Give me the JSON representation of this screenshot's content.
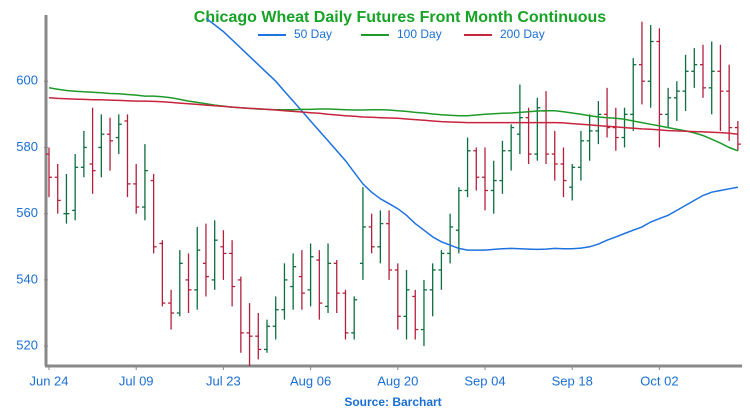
{
  "chart_data": {
    "type": "ohlc",
    "title": "Chicago Wheat Daily Futures Front Month Continuous",
    "source": "Source: Barchart",
    "categories": [
      "Jun 24",
      null,
      null,
      null,
      null,
      null,
      null,
      null,
      null,
      null,
      "Jul 09",
      null,
      null,
      null,
      null,
      null,
      null,
      null,
      null,
      null,
      "Jul 23",
      null,
      null,
      null,
      null,
      null,
      null,
      null,
      null,
      null,
      "Aug 06",
      null,
      null,
      null,
      null,
      null,
      null,
      null,
      null,
      null,
      "Aug 20",
      null,
      null,
      null,
      null,
      null,
      null,
      null,
      null,
      null,
      "Sep 04",
      null,
      null,
      null,
      null,
      null,
      null,
      null,
      null,
      null,
      "Sep 18",
      null,
      null,
      null,
      null,
      null,
      null,
      null,
      null,
      null,
      "Oct 02",
      null,
      null,
      null,
      null,
      null,
      null,
      null,
      null,
      null
    ],
    "open": [
      578,
      571,
      560,
      561,
      574,
      575,
      580,
      584,
      583,
      588,
      569,
      562,
      570,
      551,
      533,
      530,
      540,
      537,
      545,
      540,
      550,
      548,
      540,
      524,
      523,
      519,
      526,
      531,
      538,
      541,
      537,
      546,
      532,
      545,
      536,
      524,
      545,
      556,
      550,
      557,
      543,
      529,
      535,
      525,
      537,
      543,
      548,
      555,
      567,
      579,
      571,
      567,
      570,
      579,
      584,
      589,
      578,
      591,
      578,
      575,
      568,
      574,
      582,
      585,
      590,
      586,
      583,
      590,
      605,
      600,
      612,
      590,
      595,
      597,
      603,
      605,
      598,
      603,
      597,
      586
    ],
    "high": [
      580,
      575,
      572,
      578,
      585,
      592,
      590,
      589,
      590,
      590,
      575,
      581,
      572,
      552,
      537,
      549,
      548,
      556,
      557,
      558,
      555,
      552,
      541,
      533,
      530,
      528,
      535,
      545,
      548,
      549,
      551,
      549,
      551,
      546,
      537,
      535,
      568,
      560,
      561,
      561,
      545,
      543,
      537,
      540,
      545,
      549,
      560,
      568,
      583,
      580,
      580,
      576,
      582,
      587,
      599,
      592,
      595,
      597,
      585,
      580,
      575,
      585,
      590,
      594,
      598,
      592,
      592,
      607,
      618,
      617,
      616,
      598,
      600,
      608,
      610,
      611,
      612,
      611,
      605,
      588
    ],
    "low": [
      565,
      560,
      557,
      558,
      571,
      566,
      571,
      573,
      578,
      565,
      560,
      558,
      548,
      532,
      525,
      529,
      530,
      531,
      535,
      537,
      540,
      532,
      518,
      514,
      516,
      518,
      522,
      528,
      531,
      531,
      532,
      528,
      530,
      530,
      522,
      522,
      540,
      548,
      545,
      540,
      525,
      522,
      522,
      520,
      529,
      537,
      545,
      548,
      565,
      567,
      561,
      560,
      566,
      573,
      578,
      575,
      576,
      575,
      570,
      565,
      564,
      570,
      576,
      581,
      583,
      579,
      580,
      585,
      593,
      592,
      580,
      586,
      588,
      591,
      598,
      595,
      590,
      585,
      582,
      579
    ],
    "close": [
      571,
      564,
      560,
      574,
      580,
      573,
      584,
      582,
      587,
      569,
      562,
      573,
      550,
      533,
      530,
      545,
      537,
      549,
      541,
      552,
      548,
      538,
      524,
      523,
      519,
      526,
      531,
      540,
      544,
      536,
      547,
      533,
      545,
      536,
      524,
      534,
      556,
      550,
      557,
      543,
      529,
      537,
      525,
      537,
      543,
      548,
      556,
      567,
      579,
      571,
      567,
      570,
      579,
      586,
      589,
      578,
      592,
      578,
      575,
      570,
      574,
      582,
      585,
      590,
      586,
      583,
      590,
      605,
      600,
      612,
      590,
      595,
      597,
      603,
      605,
      598,
      603,
      597,
      586,
      581
    ],
    "up_color": "#0b6e3e",
    "down_color": "#b3203c",
    "series": [
      {
        "name": "50 Day",
        "color": "#1e72e0",
        "values": [
          null,
          null,
          null,
          null,
          null,
          null,
          null,
          null,
          null,
          null,
          null,
          null,
          null,
          null,
          null,
          null,
          null,
          null,
          619,
          617,
          615,
          612.5,
          610,
          607.5,
          605,
          602.5,
          600,
          597,
          594,
          591,
          588,
          585,
          582,
          579,
          576,
          572.5,
          569,
          566.5,
          564.5,
          563,
          561.5,
          559.5,
          557,
          555,
          553,
          551.5,
          550.5,
          549.5,
          549,
          549,
          549,
          549.2,
          549.4,
          549.5,
          549.4,
          549.3,
          549.2,
          549.3,
          549.5,
          549.4,
          549.4,
          549.6,
          550,
          550.8,
          552,
          553,
          554,
          555,
          556,
          557.5,
          558.5,
          559.5,
          561,
          562.5,
          564,
          565.5,
          566.5,
          567,
          567.5,
          568
        ]
      },
      {
        "name": "100 Day",
        "color": "#1e9a2a",
        "values": [
          598,
          597.6,
          597.2,
          597,
          596.8,
          596.7,
          596.5,
          596.3,
          596.2,
          596,
          595.8,
          595.5,
          595.5,
          595.3,
          595,
          594.5,
          594,
          593.6,
          593.2,
          592.8,
          592.5,
          592.2,
          592,
          591.8,
          591.6,
          591.5,
          591.4,
          591.4,
          591.4,
          591.5,
          591.5,
          591.6,
          591.6,
          591.5,
          591.4,
          591.3,
          591.3,
          591.4,
          591.4,
          591.3,
          591.1,
          590.9,
          590.6,
          590.4,
          590.1,
          589.9,
          589.7,
          589.6,
          589.6,
          589.8,
          590,
          590.2,
          590.3,
          590.4,
          590.6,
          590.8,
          591,
          591.1,
          591.1,
          590.8,
          590.4,
          590,
          589.6,
          589.2,
          589,
          588.8,
          588.5,
          588,
          587.5,
          587,
          586.5,
          586,
          585.5,
          585,
          584.4,
          583.6,
          582.5,
          581.3,
          580,
          579
        ]
      },
      {
        "name": "200 Day",
        "color": "#c8243e",
        "values": [
          595,
          594.8,
          594.7,
          594.6,
          594.5,
          594.4,
          594.4,
          594.3,
          594.2,
          594.1,
          594,
          594,
          593.9,
          593.8,
          593.6,
          593.4,
          593.2,
          593,
          592.8,
          592.6,
          592.4,
          592.2,
          592,
          591.8,
          591.7,
          591.5,
          591.3,
          591.1,
          590.9,
          590.7,
          590.5,
          590.3,
          590,
          589.8,
          589.6,
          589.4,
          589.2,
          589.1,
          589,
          588.9,
          588.8,
          588.6,
          588.4,
          588.2,
          588,
          587.8,
          587.7,
          587.6,
          587.5,
          587.5,
          587.5,
          587.5,
          587.5,
          587.5,
          587.5,
          587.5,
          587.5,
          587.5,
          587.5,
          587.4,
          587.2,
          587,
          586.8,
          586.6,
          586.4,
          586.2,
          586,
          585.8,
          585.6,
          585.5,
          585.3,
          585.1,
          585,
          584.9,
          584.8,
          584.7,
          584.6,
          584.5,
          584.3,
          584
        ]
      }
    ],
    "ylim": [
      514,
      620
    ],
    "yticks": [
      520,
      540,
      560,
      580,
      600
    ]
  }
}
